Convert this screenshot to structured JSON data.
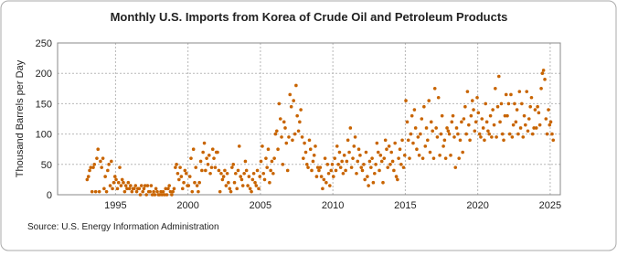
{
  "chart_data": {
    "type": "scatter",
    "title": "Monthly U.S. Imports from Korea of Crude Oil and Petroleum Products",
    "y_label": "Thousand Barrels per Day",
    "source": "Source: U.S. Energy Information Administration",
    "color": "#c86400",
    "grid": true,
    "xlim": [
      1991,
      2025.7
    ],
    "ylim": [
      0,
      250
    ],
    "xticks": [
      1995,
      2000,
      2005,
      2010,
      2015,
      2020,
      2025
    ],
    "yticks": [
      0,
      50,
      100,
      150,
      200,
      250
    ],
    "x": [
      1993.04,
      1993.13,
      1993.21,
      1993.29,
      1993.38,
      1993.46,
      1993.54,
      1993.63,
      1993.71,
      1993.79,
      1993.88,
      1993.96,
      1994.04,
      1994.13,
      1994.21,
      1994.29,
      1994.38,
      1994.46,
      1994.54,
      1994.63,
      1994.71,
      1994.79,
      1994.88,
      1994.96,
      1995.04,
      1995.13,
      1995.21,
      1995.29,
      1995.38,
      1995.46,
      1995.54,
      1995.63,
      1995.71,
      1995.79,
      1995.88,
      1995.96,
      1996.04,
      1996.13,
      1996.21,
      1996.29,
      1996.38,
      1996.46,
      1996.54,
      1996.63,
      1996.71,
      1996.79,
      1996.88,
      1996.96,
      1997.04,
      1997.13,
      1997.21,
      1997.29,
      1997.38,
      1997.46,
      1997.54,
      1997.63,
      1997.71,
      1997.79,
      1997.88,
      1997.96,
      1998.04,
      1998.13,
      1998.21,
      1998.29,
      1998.38,
      1998.46,
      1998.54,
      1998.63,
      1998.71,
      1998.79,
      1998.88,
      1998.96,
      1999.04,
      1999.13,
      1999.21,
      1999.29,
      1999.38,
      1999.46,
      1999.54,
      1999.63,
      1999.71,
      1999.79,
      1999.88,
      1999.96,
      2000.04,
      2000.13,
      2000.21,
      2000.29,
      2000.38,
      2000.46,
      2000.54,
      2000.63,
      2000.71,
      2000.79,
      2000.88,
      2000.96,
      2001.04,
      2001.13,
      2001.21,
      2001.29,
      2001.38,
      2001.46,
      2001.54,
      2001.63,
      2001.71,
      2001.79,
      2001.88,
      2001.96,
      2002.04,
      2002.13,
      2002.21,
      2002.29,
      2002.38,
      2002.46,
      2002.54,
      2002.63,
      2002.71,
      2002.79,
      2002.88,
      2002.96,
      2003.04,
      2003.13,
      2003.21,
      2003.29,
      2003.38,
      2003.46,
      2003.54,
      2003.63,
      2003.71,
      2003.79,
      2003.88,
      2003.96,
      2004.04,
      2004.13,
      2004.21,
      2004.29,
      2004.38,
      2004.46,
      2004.54,
      2004.63,
      2004.71,
      2004.79,
      2004.88,
      2004.96,
      2005.04,
      2005.13,
      2005.21,
      2005.29,
      2005.38,
      2005.46,
      2005.54,
      2005.63,
      2005.71,
      2005.79,
      2005.88,
      2005.96,
      2006.04,
      2006.13,
      2006.21,
      2006.29,
      2006.38,
      2006.46,
      2006.54,
      2006.63,
      2006.71,
      2006.79,
      2006.88,
      2006.96,
      2007.04,
      2007.13,
      2007.21,
      2007.29,
      2007.38,
      2007.46,
      2007.54,
      2007.63,
      2007.71,
      2007.79,
      2007.88,
      2007.96,
      2008.04,
      2008.13,
      2008.21,
      2008.29,
      2008.38,
      2008.46,
      2008.54,
      2008.63,
      2008.71,
      2008.79,
      2008.88,
      2008.96,
      2009.04,
      2009.13,
      2009.21,
      2009.29,
      2009.38,
      2009.46,
      2009.54,
      2009.63,
      2009.71,
      2009.79,
      2009.88,
      2009.96,
      2010.04,
      2010.13,
      2010.21,
      2010.29,
      2010.38,
      2010.46,
      2010.54,
      2010.63,
      2010.71,
      2010.79,
      2010.88,
      2010.96,
      2011.04,
      2011.13,
      2011.21,
      2011.29,
      2011.38,
      2011.46,
      2011.54,
      2011.63,
      2011.71,
      2011.79,
      2011.88,
      2011.96,
      2012.04,
      2012.13,
      2012.21,
      2012.29,
      2012.38,
      2012.46,
      2012.54,
      2012.63,
      2012.71,
      2012.79,
      2012.88,
      2012.96,
      2013.04,
      2013.13,
      2013.21,
      2013.29,
      2013.38,
      2013.46,
      2013.54,
      2013.63,
      2013.71,
      2013.79,
      2013.88,
      2013.96,
      2014.04,
      2014.13,
      2014.21,
      2014.29,
      2014.38,
      2014.46,
      2014.54,
      2014.63,
      2014.71,
      2014.79,
      2014.88,
      2014.96,
      2015.04,
      2015.13,
      2015.21,
      2015.29,
      2015.38,
      2015.46,
      2015.54,
      2015.63,
      2015.71,
      2015.79,
      2015.88,
      2015.96,
      2016.04,
      2016.13,
      2016.21,
      2016.29,
      2016.38,
      2016.46,
      2016.54,
      2016.63,
      2016.71,
      2016.79,
      2016.88,
      2016.96,
      2017.04,
      2017.13,
      2017.21,
      2017.29,
      2017.38,
      2017.46,
      2017.54,
      2017.63,
      2017.71,
      2017.79,
      2017.88,
      2017.96,
      2018.04,
      2018.13,
      2018.21,
      2018.29,
      2018.38,
      2018.46,
      2018.54,
      2018.63,
      2018.71,
      2018.79,
      2018.88,
      2018.96,
      2019.04,
      2019.13,
      2019.21,
      2019.29,
      2019.38,
      2019.46,
      2019.54,
      2019.63,
      2019.71,
      2019.79,
      2019.88,
      2019.96,
      2020.04,
      2020.13,
      2020.21,
      2020.29,
      2020.38,
      2020.46,
      2020.54,
      2020.63,
      2020.71,
      2020.79,
      2020.88,
      2020.96,
      2021.04,
      2021.13,
      2021.21,
      2021.29,
      2021.38,
      2021.46,
      2021.54,
      2021.63,
      2021.71,
      2021.79,
      2021.88,
      2021.96,
      2022.04,
      2022.13,
      2022.21,
      2022.29,
      2022.38,
      2022.46,
      2022.54,
      2022.63,
      2022.71,
      2022.79,
      2022.88,
      2022.96,
      2023.04,
      2023.13,
      2023.21,
      2023.29,
      2023.38,
      2023.46,
      2023.54,
      2023.63,
      2023.71,
      2023.79,
      2023.88,
      2023.96,
      2024.04,
      2024.13,
      2024.21,
      2024.29,
      2024.38,
      2024.46,
      2024.54,
      2024.63,
      2024.71,
      2024.79,
      2024.88,
      2024.96,
      2025.04,
      2025.13,
      2025.21
    ],
    "values": [
      25,
      30,
      40,
      45,
      5,
      45,
      50,
      5,
      60,
      75,
      5,
      55,
      45,
      60,
      10,
      30,
      5,
      40,
      50,
      15,
      55,
      10,
      20,
      30,
      25,
      10,
      20,
      45,
      15,
      25,
      20,
      5,
      15,
      10,
      20,
      10,
      15,
      5,
      10,
      10,
      15,
      5,
      10,
      10,
      0,
      15,
      5,
      10,
      15,
      0,
      15,
      5,
      5,
      15,
      0,
      5,
      0,
      10,
      5,
      0,
      0,
      5,
      0,
      5,
      0,
      10,
      0,
      10,
      15,
      5,
      0,
      5,
      10,
      45,
      50,
      35,
      25,
      45,
      30,
      10,
      20,
      40,
      35,
      15,
      15,
      30,
      60,
      5,
      75,
      20,
      45,
      15,
      5,
      20,
      55,
      40,
      70,
      85,
      40,
      60,
      50,
      65,
      35,
      45,
      75,
      60,
      45,
      70,
      70,
      40,
      5,
      35,
      25,
      30,
      40,
      15,
      35,
      20,
      10,
      5,
      45,
      50,
      20,
      35,
      10,
      40,
      80,
      30,
      25,
      15,
      35,
      55,
      40,
      15,
      30,
      10,
      5,
      25,
      35,
      20,
      15,
      40,
      10,
      30,
      55,
      80,
      35,
      25,
      60,
      45,
      75,
      20,
      40,
      55,
      35,
      60,
      100,
      105,
      75,
      150,
      125,
      95,
      50,
      120,
      110,
      85,
      40,
      95,
      165,
      145,
      90,
      155,
      100,
      180,
      130,
      105,
      120,
      140,
      95,
      60,
      85,
      70,
      50,
      45,
      90,
      75,
      40,
      55,
      65,
      80,
      30,
      45,
      40,
      45,
      30,
      10,
      25,
      60,
      20,
      50,
      35,
      15,
      40,
      50,
      30,
      60,
      40,
      80,
      50,
      70,
      45,
      55,
      35,
      65,
      40,
      55,
      90,
      70,
      110,
      45,
      60,
      80,
      95,
      35,
      55,
      75,
      65,
      45,
      40,
      50,
      25,
      70,
      30,
      15,
      55,
      45,
      60,
      20,
      35,
      50,
      85,
      70,
      40,
      65,
      55,
      20,
      60,
      90,
      75,
      45,
      80,
      50,
      70,
      55,
      40,
      85,
      30,
      25,
      60,
      75,
      50,
      90,
      45,
      65,
      155,
      120,
      90,
      60,
      100,
      130,
      85,
      140,
      110,
      75,
      95,
      65,
      100,
      125,
      60,
      145,
      80,
      110,
      90,
      155,
      70,
      120,
      105,
      60,
      175,
      110,
      95,
      160,
      65,
      100,
      130,
      80,
      90,
      60,
      110,
      105,
      100,
      65,
      120,
      130,
      95,
      45,
      110,
      100,
      60,
      90,
      120,
      70,
      125,
      145,
      100,
      170,
      115,
      90,
      130,
      155,
      140,
      105,
      120,
      160,
      135,
      100,
      95,
      125,
      110,
      90,
      150,
      120,
      105,
      100,
      130,
      95,
      140,
      115,
      175,
      95,
      145,
      195,
      120,
      150,
      100,
      90,
      130,
      165,
      130,
      150,
      100,
      165,
      95,
      115,
      150,
      120,
      140,
      100,
      170,
      110,
      150,
      95,
      130,
      115,
      170,
      105,
      125,
      145,
      160,
      100,
      110,
      140,
      110,
      145,
      135,
      115,
      175,
      200,
      205,
      190,
      125,
      100,
      140,
      115,
      120,
      100,
      90
    ]
  }
}
